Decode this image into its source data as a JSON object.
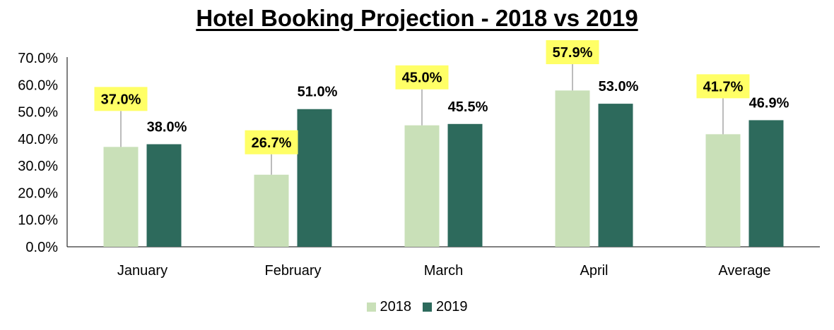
{
  "chart_data": {
    "type": "bar",
    "title": "Hotel Booking Projection - 2018 vs 2019",
    "categories": [
      "January",
      "February",
      "March",
      "April",
      "Average"
    ],
    "series": [
      {
        "name": "2018",
        "color": "#c9e0b8",
        "values": [
          37.0,
          26.7,
          45.0,
          57.9,
          41.7
        ],
        "labels": [
          "37.0%",
          "26.7%",
          "45.0%",
          "57.9%",
          "41.7%"
        ]
      },
      {
        "name": "2019",
        "color": "#2d6a5c",
        "values": [
          38.0,
          51.0,
          45.5,
          53.0,
          46.9
        ],
        "labels": [
          "38.0%",
          "51.0%",
          "45.5%",
          "53.0%",
          "46.9%"
        ]
      }
    ],
    "ylim": [
      0,
      70
    ],
    "yticks": [
      "0.0%",
      "10.0%",
      "20.0%",
      "30.0%",
      "40.0%",
      "50.0%",
      "60.0%",
      "70.0%"
    ],
    "xlabel": "",
    "ylabel": "",
    "grid": false,
    "legend_position": "bottom-center",
    "highlight_color": "#ffff66"
  }
}
